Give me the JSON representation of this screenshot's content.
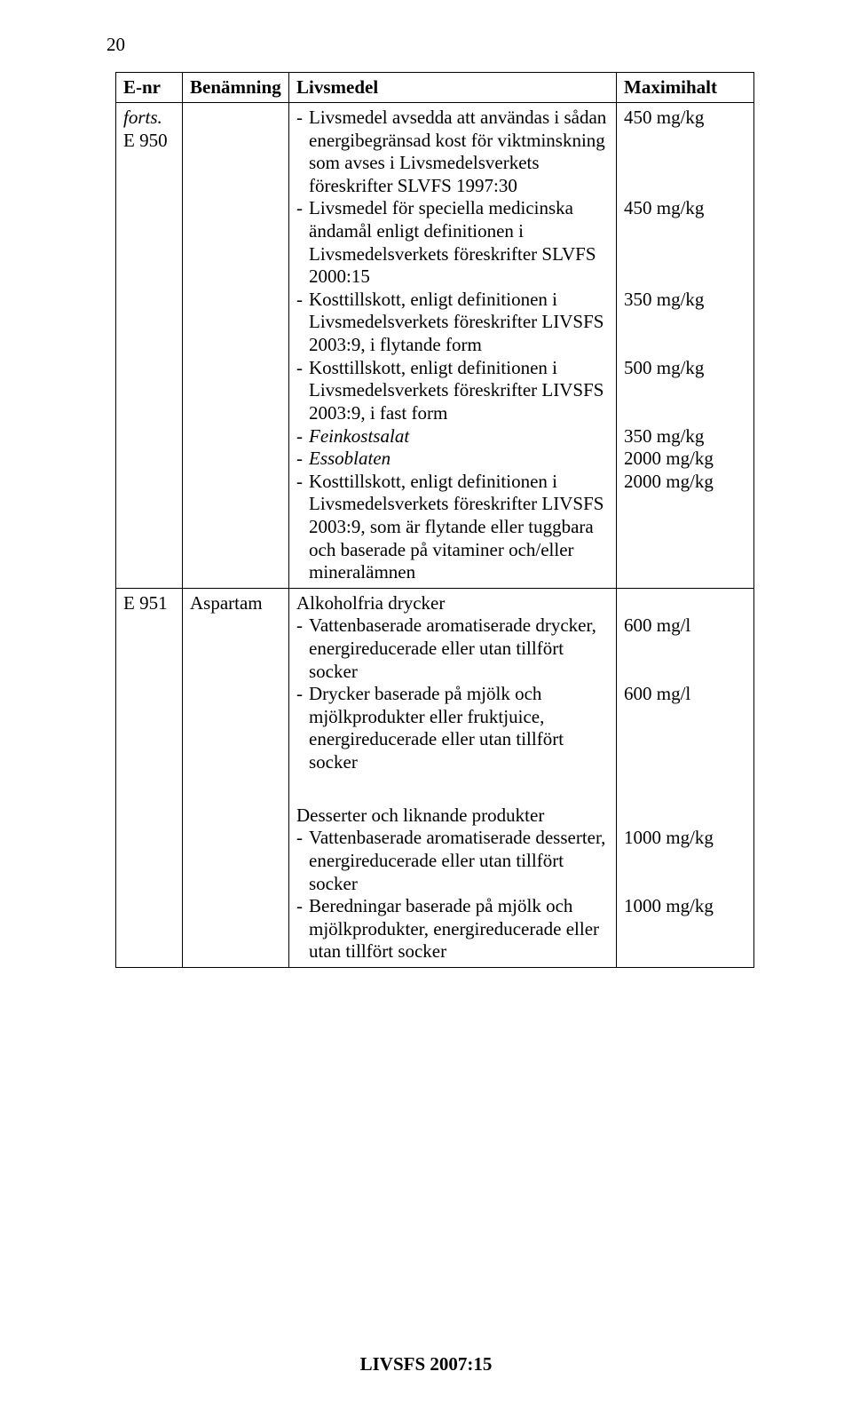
{
  "page_number": "20",
  "header": {
    "col1": "E-nr",
    "col2": "Benämning",
    "col3": "Livsmedel",
    "col4": "Maximihalt"
  },
  "row1": {
    "enr_line1": "forts.",
    "enr_line2": "E 950",
    "name": "",
    "items": [
      "Livsmedel avsedda att användas i sådan energibegränsad kost för viktminskning som avses i Livsmedelsverkets föreskrifter SLVFS 1997:30",
      "Livsmedel för speciella medicinska ändamål enligt definitionen i Livsmedelsverkets föreskrifter SLVFS 2000:15",
      "Kosttillskott, enligt definitionen i Livsmedelsverkets föreskrifter LIVSFS 2003:9, i flytande form",
      "Kosttillskott, enligt definitionen i Livsmedelsverkets föreskrifter LIVSFS 2003:9, i fast form",
      "Feinkostsalat",
      "Essoblaten",
      "Kosttillskott, enligt definitionen i Livsmedelsverkets föreskrifter LIVSFS 2003:9, som är flytande eller tuggbara och baserade på vitaminer och/eller mineralämnen"
    ],
    "item_italic": [
      false,
      false,
      false,
      false,
      true,
      true,
      false
    ],
    "max": {
      "l1": "450 mg/kg",
      "sp1": "",
      "sp2": "",
      "sp3": "",
      "l2": "450 mg/kg",
      "sp4": "",
      "sp5": "",
      "sp6": "",
      "l3": "350 mg/kg",
      "sp7": "",
      "sp8": "",
      "l4": "500 mg/kg",
      "sp9": "",
      "sp10": "",
      "l5": "350 mg/kg",
      "l6": "2000 mg/kg",
      "l7": "2000 mg/kg"
    }
  },
  "row2": {
    "enr": "E 951",
    "name": "Aspartam",
    "lead": "Alkoholfria drycker",
    "items": [
      "Vattenbaserade aromatiserade drycker, energireducerade eller utan tillfört socker",
      "Drycker baserade på mjölk och mjölkprodukter eller fruktjuice, energireducerade eller utan tillfört socker"
    ],
    "max": {
      "sp0": "",
      "l1": "600 mg/l",
      "sp1": "",
      "sp2": "",
      "l2": "600 mg/l"
    }
  },
  "row3": {
    "lead": "Desserter och liknande produkter",
    "items": [
      "Vattenbaserade aromatiserade desserter, energireducerade eller utan tillfört socker",
      "Beredningar baserade på mjölk och mjölkprodukter, energireducerade eller utan tillfört socker"
    ],
    "max": {
      "sp0": "",
      "l1": "1000 mg/kg",
      "sp1": "",
      "sp2": "",
      "l2": "1000 mg/kg"
    }
  },
  "footer": "LIVSFS 2007:15"
}
